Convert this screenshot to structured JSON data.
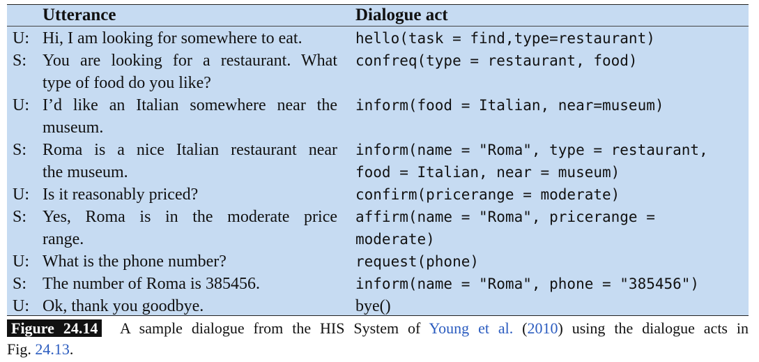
{
  "table": {
    "headers": {
      "utterance": "Utterance",
      "dialogue_act": "Dialogue act"
    },
    "rows": [
      {
        "speaker": "U:",
        "utterance": [
          "Hi, I am looking for somewhere to eat."
        ],
        "act": [
          "hello(task = find,type=restaurant)"
        ]
      },
      {
        "speaker": "S:",
        "utterance": [
          "You are looking for a restaurant. What",
          "type of food do you like?"
        ],
        "act": [
          "confreq(type = restaurant, food)"
        ]
      },
      {
        "speaker": "U:",
        "utterance": [
          "I’d like an Italian somewhere near the",
          "museum."
        ],
        "act": [
          "inform(food = Italian, near=museum)"
        ]
      },
      {
        "speaker": "S:",
        "utterance": [
          "Roma is a nice Italian restaurant near",
          "the museum."
        ],
        "act": [
          "inform(name = \"Roma\", type = restaurant,",
          "food = Italian, near = museum)"
        ]
      },
      {
        "speaker": "U:",
        "utterance": [
          "Is it reasonably priced?"
        ],
        "act": [
          "confirm(pricerange = moderate)"
        ]
      },
      {
        "speaker": "S:",
        "utterance": [
          "Yes, Roma is in the moderate price",
          "range."
        ],
        "act": [
          "affirm(name = \"Roma\", pricerange =",
          "moderate)"
        ]
      },
      {
        "speaker": "U:",
        "utterance": [
          "What is the phone number?"
        ],
        "act": [
          "request(phone)"
        ]
      },
      {
        "speaker": "S:",
        "utterance": [
          "The number of Roma is 385456."
        ],
        "act": [
          "inform(name = \"Roma\", phone = \"385456\")"
        ]
      },
      {
        "speaker": "U:",
        "utterance": [
          "Ok, thank you goodbye."
        ],
        "act": [
          "bye()"
        ]
      }
    ]
  },
  "caption": {
    "label": "Figure 24.14",
    "text_before": "A sample dialogue from the HIS System of",
    "citation_author": "Young et al.",
    "citation_year": "2010",
    "text_after": "using the dialogue acts in",
    "line2_prefix": "Fig.",
    "fig_ref": "24.13",
    "line2_suffix": ".",
    "link_color": "#2a5bbf"
  }
}
